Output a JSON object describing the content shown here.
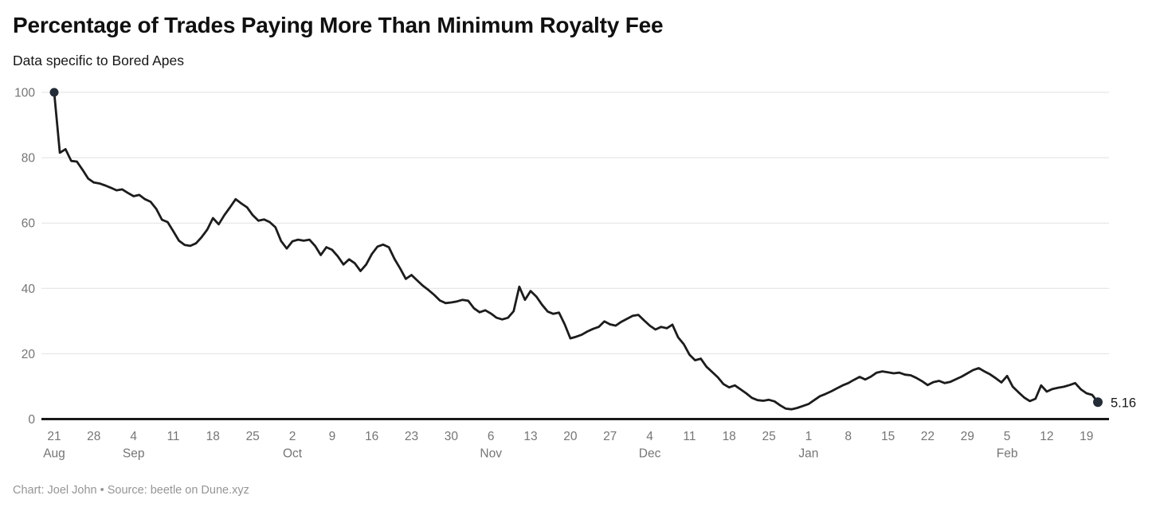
{
  "chart_data": {
    "type": "line",
    "title": "Percentage of Trades Paying More Than Minimum Royalty Fee",
    "subtitle": "Data specific to Bored Apes",
    "credit": "Chart: Joel John • Source: beetle on Dune.xyz",
    "x": {
      "unit": "day",
      "start": "Aug 21",
      "end": "Feb 21",
      "points": 185
    },
    "ylim": [
      0,
      100
    ],
    "yticks": [
      0,
      20,
      40,
      60,
      80,
      100
    ],
    "grid": true,
    "legend": false,
    "end_label": "5.16",
    "first_value": 100,
    "last_value": 5.16,
    "xticks": [
      {
        "day": 0,
        "label": "21",
        "month": "Aug"
      },
      {
        "day": 7,
        "label": "28"
      },
      {
        "day": 14,
        "label": "4",
        "month": "Sep"
      },
      {
        "day": 21,
        "label": "11"
      },
      {
        "day": 28,
        "label": "18"
      },
      {
        "day": 35,
        "label": "25"
      },
      {
        "day": 42,
        "label": "2",
        "month": "Oct"
      },
      {
        "day": 49,
        "label": "9"
      },
      {
        "day": 56,
        "label": "16"
      },
      {
        "day": 63,
        "label": "23"
      },
      {
        "day": 70,
        "label": "30"
      },
      {
        "day": 77,
        "label": "6",
        "month": "Nov"
      },
      {
        "day": 84,
        "label": "13"
      },
      {
        "day": 91,
        "label": "20"
      },
      {
        "day": 98,
        "label": "27"
      },
      {
        "day": 105,
        "label": "4",
        "month": "Dec"
      },
      {
        "day": 112,
        "label": "11"
      },
      {
        "day": 119,
        "label": "18"
      },
      {
        "day": 126,
        "label": "25"
      },
      {
        "day": 133,
        "label": "1",
        "month": "Jan"
      },
      {
        "day": 140,
        "label": "8"
      },
      {
        "day": 147,
        "label": "15"
      },
      {
        "day": 154,
        "label": "22"
      },
      {
        "day": 161,
        "label": "29"
      },
      {
        "day": 168,
        "label": "5",
        "month": "Feb"
      },
      {
        "day": 175,
        "label": "12"
      },
      {
        "day": 182,
        "label": "19"
      }
    ],
    "series": [
      {
        "name": "Percent of trades paying more than minimum royalty fee",
        "values": [
          100,
          81.5,
          82.6,
          79,
          78.8,
          76.3,
          73.6,
          72.4,
          72.1,
          71.5,
          70.8,
          70,
          70.3,
          69.2,
          68.2,
          68.6,
          67.3,
          66.5,
          64.3,
          61,
          60.3,
          57.5,
          54.6,
          53.3,
          53,
          53.8,
          55.7,
          58,
          61.5,
          59.6,
          62.4,
          64.8,
          67.3,
          66,
          64.8,
          62.4,
          60.7,
          61.1,
          60.3,
          58.7,
          54.5,
          52.2,
          54.4,
          54.9,
          54.6,
          54.9,
          53,
          50.2,
          52.6,
          51.8,
          49.8,
          47.3,
          48.9,
          47.7,
          45.3,
          47.3,
          50.5,
          52.8,
          53.4,
          52.6,
          49,
          46.1,
          42.9,
          44.1,
          42.4,
          40.8,
          39.5,
          38,
          36.3,
          35.5,
          35.7,
          36,
          36.5,
          36.2,
          33.9,
          32.7,
          33.3,
          32.3,
          31,
          30.5,
          31,
          33,
          40.5,
          36.5,
          39.2,
          37.5,
          35,
          32.9,
          32.2,
          32.6,
          29,
          24.7,
          25.2,
          25.8,
          26.8,
          27.6,
          28.2,
          29.9,
          29,
          28.6,
          29.8,
          30.7,
          31.6,
          31.9,
          30.2,
          28.6,
          27.4,
          28.2,
          27.8,
          28.9,
          25,
          22.9,
          19.7,
          18,
          18.5,
          16,
          14.4,
          12.8,
          10.7,
          9.7,
          10.3,
          9.1,
          7.9,
          6.5,
          5.8,
          5.6,
          5.9,
          5.4,
          4.2,
          3.2,
          3,
          3.4,
          4,
          4.6,
          5.8,
          7,
          7.7,
          8.5,
          9.4,
          10.3,
          11,
          12,
          12.9,
          12.1,
          13,
          14.2,
          14.6,
          14.3,
          14,
          14.2,
          13.6,
          13.4,
          12.6,
          11.6,
          10.4,
          11.3,
          11.7,
          11,
          11.4,
          12.2,
          13,
          14,
          15,
          15.6,
          14.6,
          13.7,
          12.5,
          11.2,
          13.2,
          9.9,
          8.2,
          6.6,
          5.5,
          6.2,
          10.3,
          8.4,
          9.2,
          9.6,
          9.9,
          10.4,
          11,
          9.1,
          7.9,
          7.4,
          5.16
        ]
      }
    ],
    "colors": {
      "line": "#1c1c1c",
      "marker": "#242c38",
      "grid": "#e1e1e1",
      "axis": "#191919",
      "tick_label": "#757575",
      "title": "#101010",
      "subtitle": "#171717",
      "credit": "#959595",
      "end_label": "#161616",
      "background": "#ffffff"
    }
  }
}
